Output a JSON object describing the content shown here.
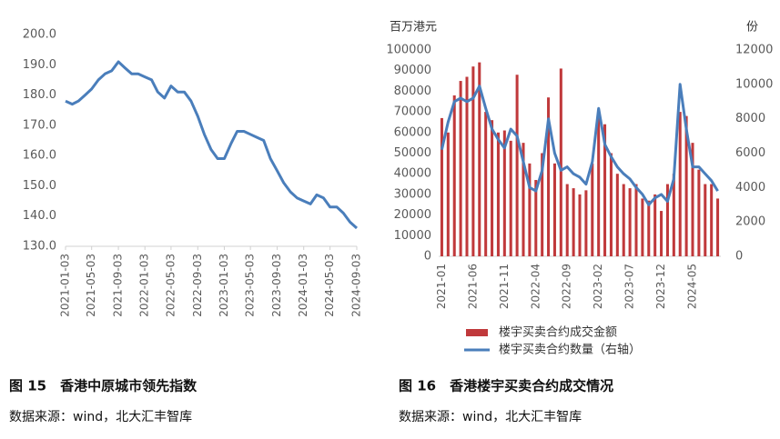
{
  "chart_data": [
    {
      "type": "line",
      "title": "图 15　香港中原城市领先指数",
      "source": "数据来源：wind，北大汇丰智库",
      "x": [
        "2021-01-03",
        "2021-02-03",
        "2021-03-03",
        "2021-04-03",
        "2021-05-03",
        "2021-06-03",
        "2021-07-03",
        "2021-08-03",
        "2021-09-03",
        "2021-10-03",
        "2021-11-03",
        "2021-12-03",
        "2022-01-03",
        "2022-02-03",
        "2022-03-03",
        "2022-04-03",
        "2022-05-03",
        "2022-06-03",
        "2022-07-03",
        "2022-08-03",
        "2022-09-03",
        "2022-10-03",
        "2022-11-03",
        "2022-12-03",
        "2023-01-03",
        "2023-02-03",
        "2023-03-03",
        "2023-04-03",
        "2023-05-03",
        "2023-06-03",
        "2023-07-03",
        "2023-08-03",
        "2023-09-03",
        "2023-10-03",
        "2023-11-03",
        "2023-12-03",
        "2024-01-03",
        "2024-02-03",
        "2024-03-03",
        "2024-04-03",
        "2024-05-03",
        "2024-06-03",
        "2024-07-03",
        "2024-08-03",
        "2024-09-03"
      ],
      "values": [
        178,
        177,
        178,
        180,
        182,
        185,
        187,
        188,
        191,
        189,
        187,
        187,
        186,
        185,
        181,
        179,
        183,
        181,
        181,
        178,
        173,
        167,
        162,
        159,
        159,
        164,
        168,
        168,
        167,
        166,
        165,
        159,
        155,
        151,
        148,
        146,
        145,
        144,
        147,
        146,
        143,
        143,
        141,
        138,
        136
      ],
      "color": "#4a7ebb",
      "xlim": [
        "2021-01-03",
        "2024-09-03"
      ],
      "xticks": [
        "2021-01-03",
        "2021-05-03",
        "2021-09-03",
        "2022-01-03",
        "2022-05-03",
        "2022-09-03",
        "2023-01-03",
        "2023-05-03",
        "2023-09-03",
        "2024-01-03",
        "2024-05-03",
        "2024-09-03"
      ],
      "ylim": [
        130,
        200
      ],
      "yticks": [
        {
          "value": 130,
          "label": "130.0"
        },
        {
          "value": 140,
          "label": "140.0"
        },
        {
          "value": 150,
          "label": "150.0"
        },
        {
          "value": 160,
          "label": "160.0"
        },
        {
          "value": 170,
          "label": "170.0"
        },
        {
          "value": 180,
          "label": "180.0"
        },
        {
          "value": 190,
          "label": "190.0"
        },
        {
          "value": 200,
          "label": "200.0"
        }
      ]
    },
    {
      "type": "bar",
      "title": "图 16　香港楼宇买卖合约成交情况",
      "source": "数据来源：wind，北大汇丰智库",
      "ylabel": "百万港元",
      "y2label": "份",
      "categories": [
        "2021-01",
        null,
        null,
        null,
        null,
        "2021-06",
        null,
        null,
        null,
        null,
        "2021-11",
        null,
        null,
        null,
        null,
        "2022-04",
        null,
        null,
        null,
        null,
        "2022-09",
        null,
        null,
        null,
        null,
        "2023-02",
        null,
        null,
        null,
        null,
        "2023-07",
        null,
        null,
        null,
        null,
        "2023-12",
        null,
        null,
        null,
        null,
        "2024-05",
        null,
        null,
        null,
        null
      ],
      "series": [
        {
          "name": "楼宇买卖合约成交金额",
          "type": "bar",
          "color": "#c0393b",
          "values": [
            67000,
            60000,
            78000,
            85000,
            87000,
            92000,
            94000,
            70000,
            66000,
            60000,
            61000,
            56000,
            88000,
            55000,
            45000,
            37000,
            50000,
            77000,
            45000,
            91000,
            35000,
            33000,
            30000,
            32000,
            45000,
            70000,
            64000,
            50000,
            40000,
            35000,
            33000,
            35000,
            28000,
            27000,
            30000,
            22000,
            35000,
            40000,
            70000,
            68000,
            55000,
            42000,
            35000,
            35000,
            28000
          ]
        },
        {
          "name": "楼宇买卖合约数量（右轴）",
          "type": "line",
          "axis": "y2",
          "color": "#4a7ebb",
          "values": [
            6200,
            7800,
            9000,
            9200,
            9000,
            9200,
            9900,
            8600,
            7400,
            6800,
            6300,
            7400,
            7000,
            5500,
            4000,
            3800,
            5000,
            8000,
            6000,
            5000,
            5200,
            4800,
            4600,
            4200,
            5500,
            8600,
            6500,
            5800,
            5200,
            4800,
            4500,
            4000,
            3600,
            3000,
            3400,
            3600,
            3200,
            4500,
            10000,
            7400,
            5200,
            5200,
            4800,
            4400,
            3800
          ]
        }
      ],
      "ylim": [
        0,
        100000
      ],
      "yticks": [
        0,
        10000,
        20000,
        30000,
        40000,
        50000,
        60000,
        70000,
        80000,
        90000,
        100000
      ],
      "y2lim": [
        0,
        12000
      ],
      "y2ticks": [
        0,
        2000,
        4000,
        6000,
        8000,
        10000,
        12000
      ]
    }
  ]
}
